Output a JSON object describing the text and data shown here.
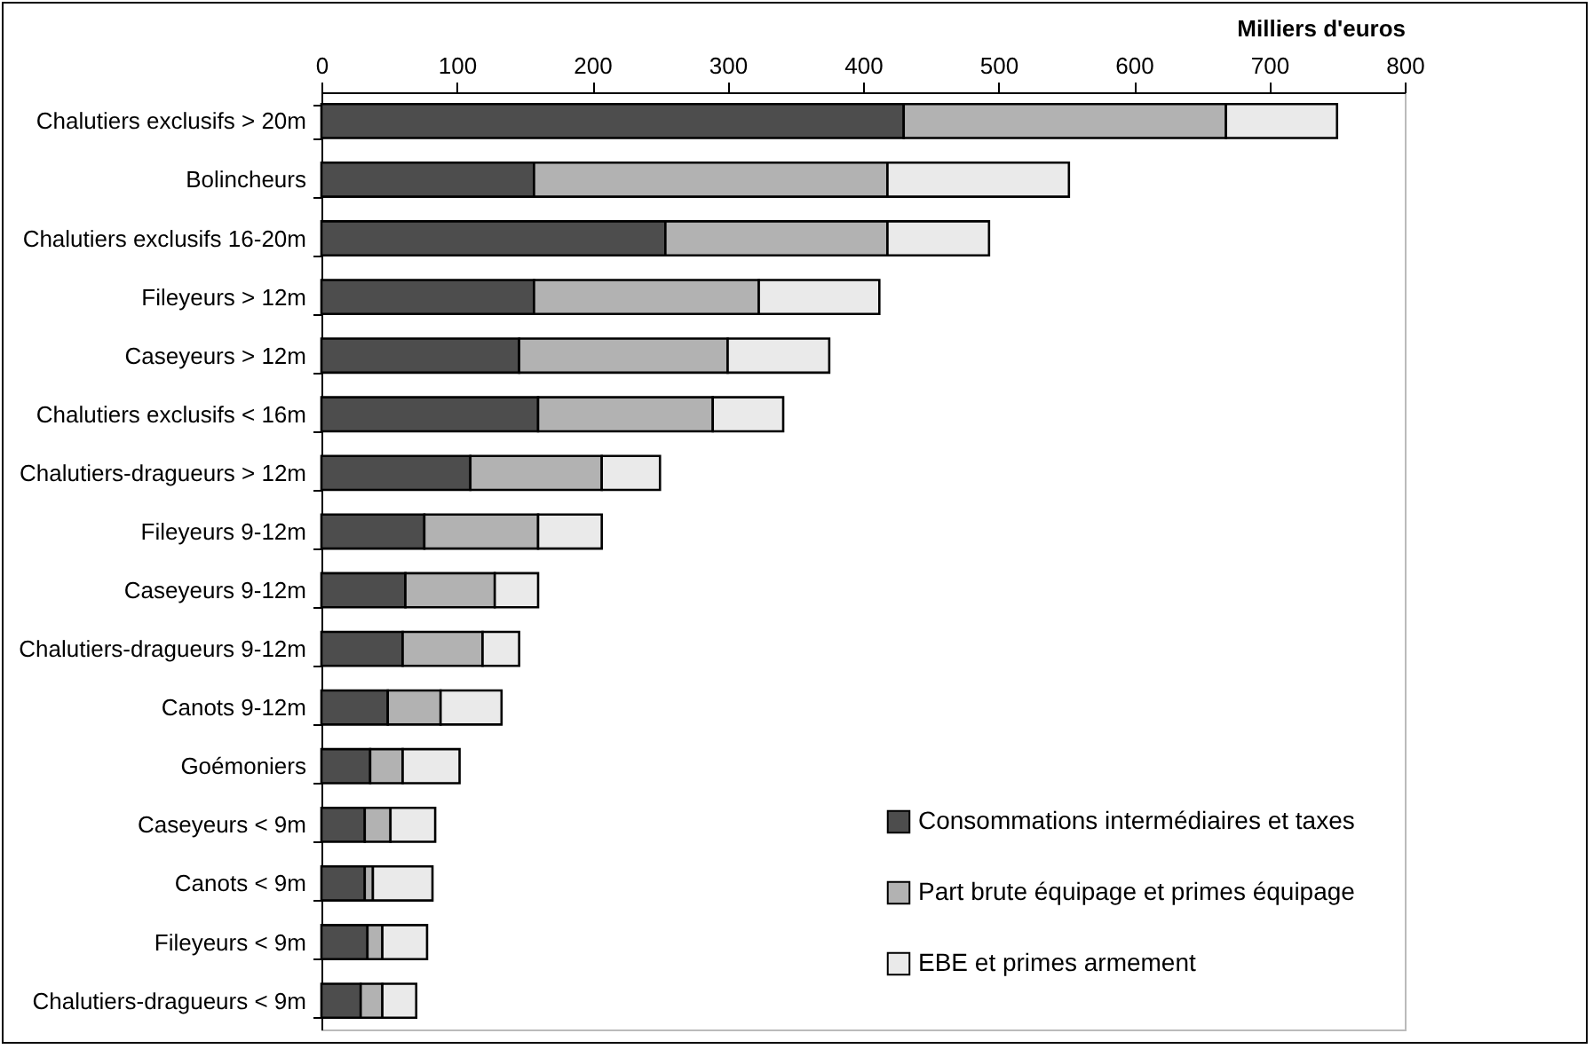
{
  "chart_data": {
    "type": "bar",
    "orientation": "horizontal",
    "stacked": true,
    "xlabel": "Milliers d'euros",
    "categories": [
      "Chalutiers exclusifs > 20m",
      "Bolincheurs",
      "Chalutiers exclusifs 16-20m",
      "Fileyeurs > 12m",
      "Caseyeurs > 12m",
      "Chalutiers exclusifs < 16m",
      "Chalutiers-dragueurs > 12m",
      "Fileyeurs 9-12m",
      "Caseyeurs 9-12m",
      "Chalutiers-dragueurs 9-12m",
      "Canots 9-12m",
      "Goémoniers",
      "Caseyeurs < 9m",
      "Canots < 9m",
      "Fileyeurs < 9m",
      "Chalutiers-dragueurs < 9m"
    ],
    "series": [
      {
        "name": "Consommations intermédiaires et taxes",
        "color": "#4d4d4d",
        "values": [
          430,
          157,
          254,
          157,
          146,
          160,
          110,
          76,
          62,
          60,
          49,
          36,
          32,
          32,
          34,
          29
        ]
      },
      {
        "name": "Part brute équipage et primes équipage",
        "color": "#b2b2b2",
        "values": [
          238,
          261,
          164,
          166,
          154,
          129,
          97,
          84,
          66,
          59,
          39,
          24,
          19,
          6,
          11,
          16
        ]
      },
      {
        "name": "EBE et primes armement",
        "color": "#eaeaea",
        "values": [
          82,
          134,
          75,
          89,
          75,
          52,
          43,
          47,
          32,
          27,
          45,
          42,
          33,
          44,
          33,
          25
        ]
      }
    ],
    "xlim": [
      0,
      800
    ],
    "xticks": [
      0,
      100,
      200,
      300,
      400,
      500,
      600,
      700,
      800
    ],
    "grid": false,
    "legend": "bottom right"
  }
}
